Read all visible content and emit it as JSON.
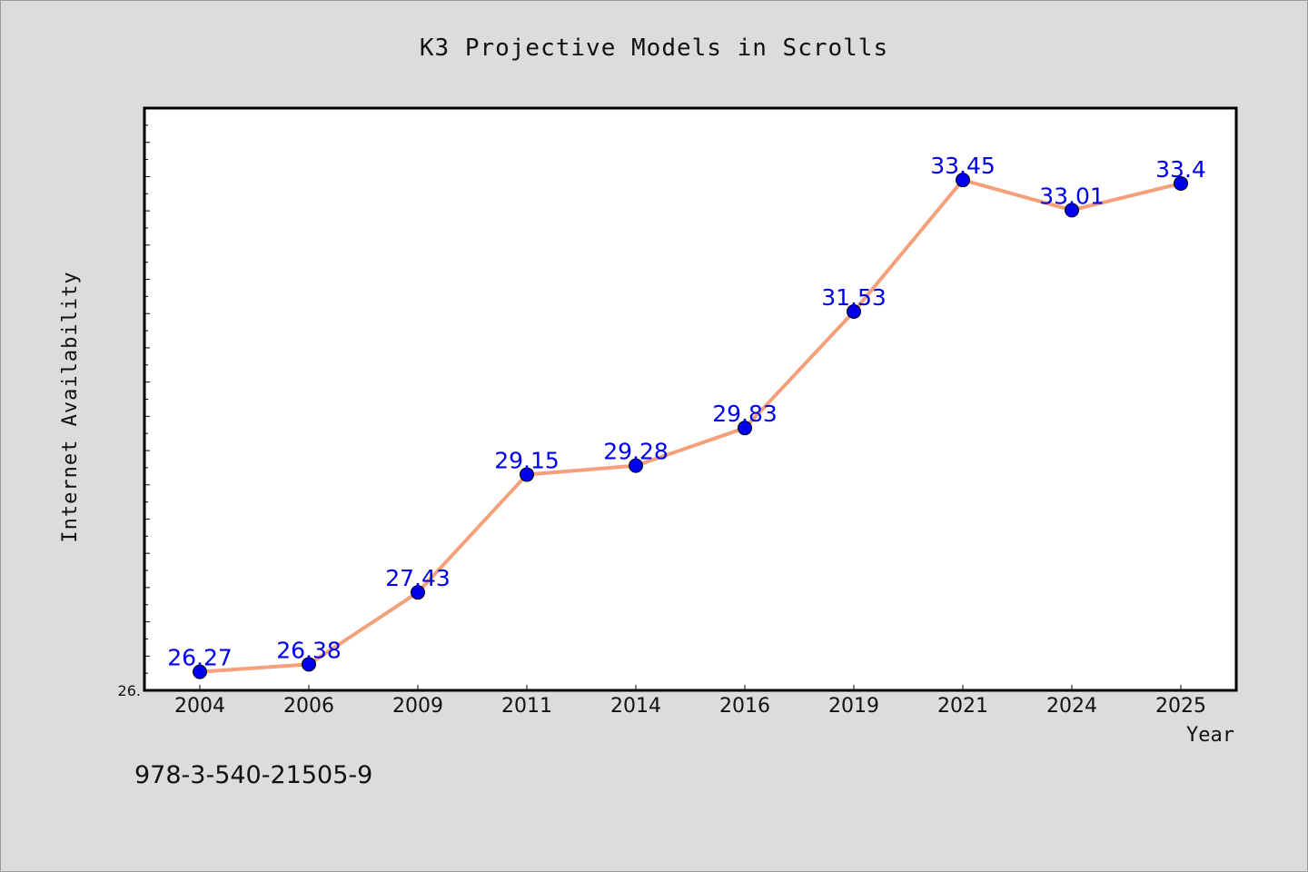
{
  "chart_data": {
    "type": "line",
    "title": "K3 Projective Models in Scrolls",
    "xlabel": "Year",
    "ylabel": "Internet Availability",
    "categories": [
      "2004",
      "2006",
      "2009",
      "2011",
      "2014",
      "2016",
      "2019",
      "2021",
      "2024",
      "2025"
    ],
    "series": [
      {
        "values": [
          26.27,
          26.38,
          27.43,
          29.15,
          29.28,
          29.83,
          31.53,
          33.45,
          33.01,
          33.4
        ]
      }
    ],
    "ylim": [
      26.0,
      34.5
    ],
    "y_tick_labels": [
      "26."
    ],
    "grid": false,
    "line_color": "#f4a07a",
    "marker_color": "#0000ee",
    "label_color": "#0000ee"
  },
  "footer_text": "978-3-540-21505-9"
}
